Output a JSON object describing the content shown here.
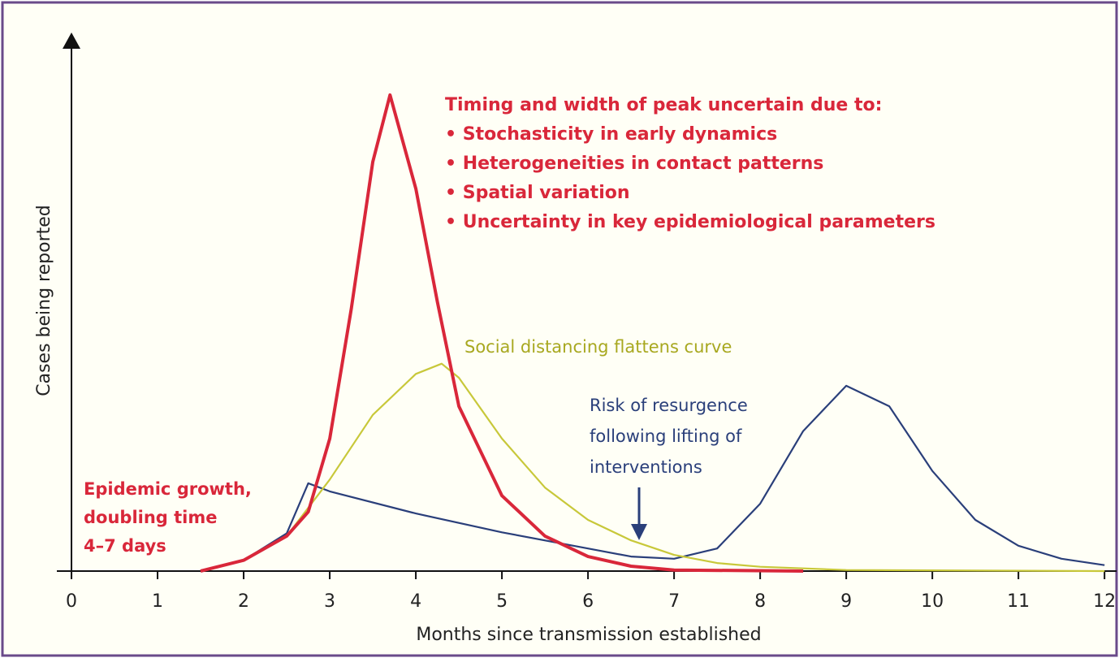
{
  "chart_data": {
    "type": "line",
    "x_label": "Months since transmission established",
    "y_label": "Cases being reported",
    "xlim": [
      -0.17,
      12.14
    ],
    "ylim": [
      0,
      100
    ],
    "xticks": [
      0,
      1,
      2,
      3,
      4,
      5,
      6,
      7,
      8,
      9,
      10,
      11,
      12
    ],
    "series": [
      {
        "color": "#2a3f7a",
        "x": [
          1.5,
          2,
          2.5,
          2.75,
          3,
          4,
          5,
          6,
          6.5,
          7,
          7.5,
          8,
          8.5,
          9,
          9.5,
          10,
          10.5,
          11,
          11.5,
          12
        ],
        "values": [
          0,
          2,
          7,
          16.3,
          14.8,
          10.7,
          7.2,
          4.2,
          2.7,
          2.3,
          4.2,
          12.5,
          26,
          34.4,
          30.6,
          18.6,
          9.5,
          4.7,
          2.3,
          1.1
        ]
      },
      {
        "color": "#c8c83a",
        "x": [
          1.5,
          2,
          2.5,
          3,
          3.5,
          4,
          4.3,
          4.5,
          5,
          5.5,
          6,
          6.5,
          7,
          7.5,
          8,
          9,
          12
        ],
        "values": [
          0,
          2,
          6.5,
          17,
          29,
          36.6,
          38.5,
          35.9,
          24.6,
          15.5,
          9.5,
          5.7,
          3,
          1.5,
          0.8,
          0.2,
          0
        ]
      },
      {
        "color": "#d9273a",
        "x": [
          1.5,
          2,
          2.5,
          2.75,
          3,
          3.25,
          3.5,
          3.7,
          4,
          4.25,
          4.5,
          5,
          5.5,
          6,
          6.5,
          7,
          8.5
        ],
        "values": [
          0,
          2,
          6.5,
          11,
          24.6,
          48.7,
          76,
          88.4,
          71,
          50,
          30.6,
          14,
          6.5,
          2.7,
          0.9,
          0.2,
          0
        ]
      }
    ],
    "annotations": [
      {
        "color": "#d9273a",
        "lines": [
          "Timing and width of peak uncertain due to:",
          "• Stochasticity in early dynamics",
          "• Heterogeneities in contact patterns",
          "• Spatial variation",
          "• Uncertainty in key epidemiological parameters"
        ]
      },
      {
        "color": "#a8a820",
        "lines": [
          "Social distancing flattens curve"
        ]
      },
      {
        "color": "#2a3f7a",
        "lines": [
          "Risk of resurgence",
          "following lifting of",
          "interventions"
        ]
      },
      {
        "color": "#d9273a",
        "lines": [
          "Epidemic growth,",
          "doubling time",
          "4–7 days"
        ]
      }
    ]
  }
}
